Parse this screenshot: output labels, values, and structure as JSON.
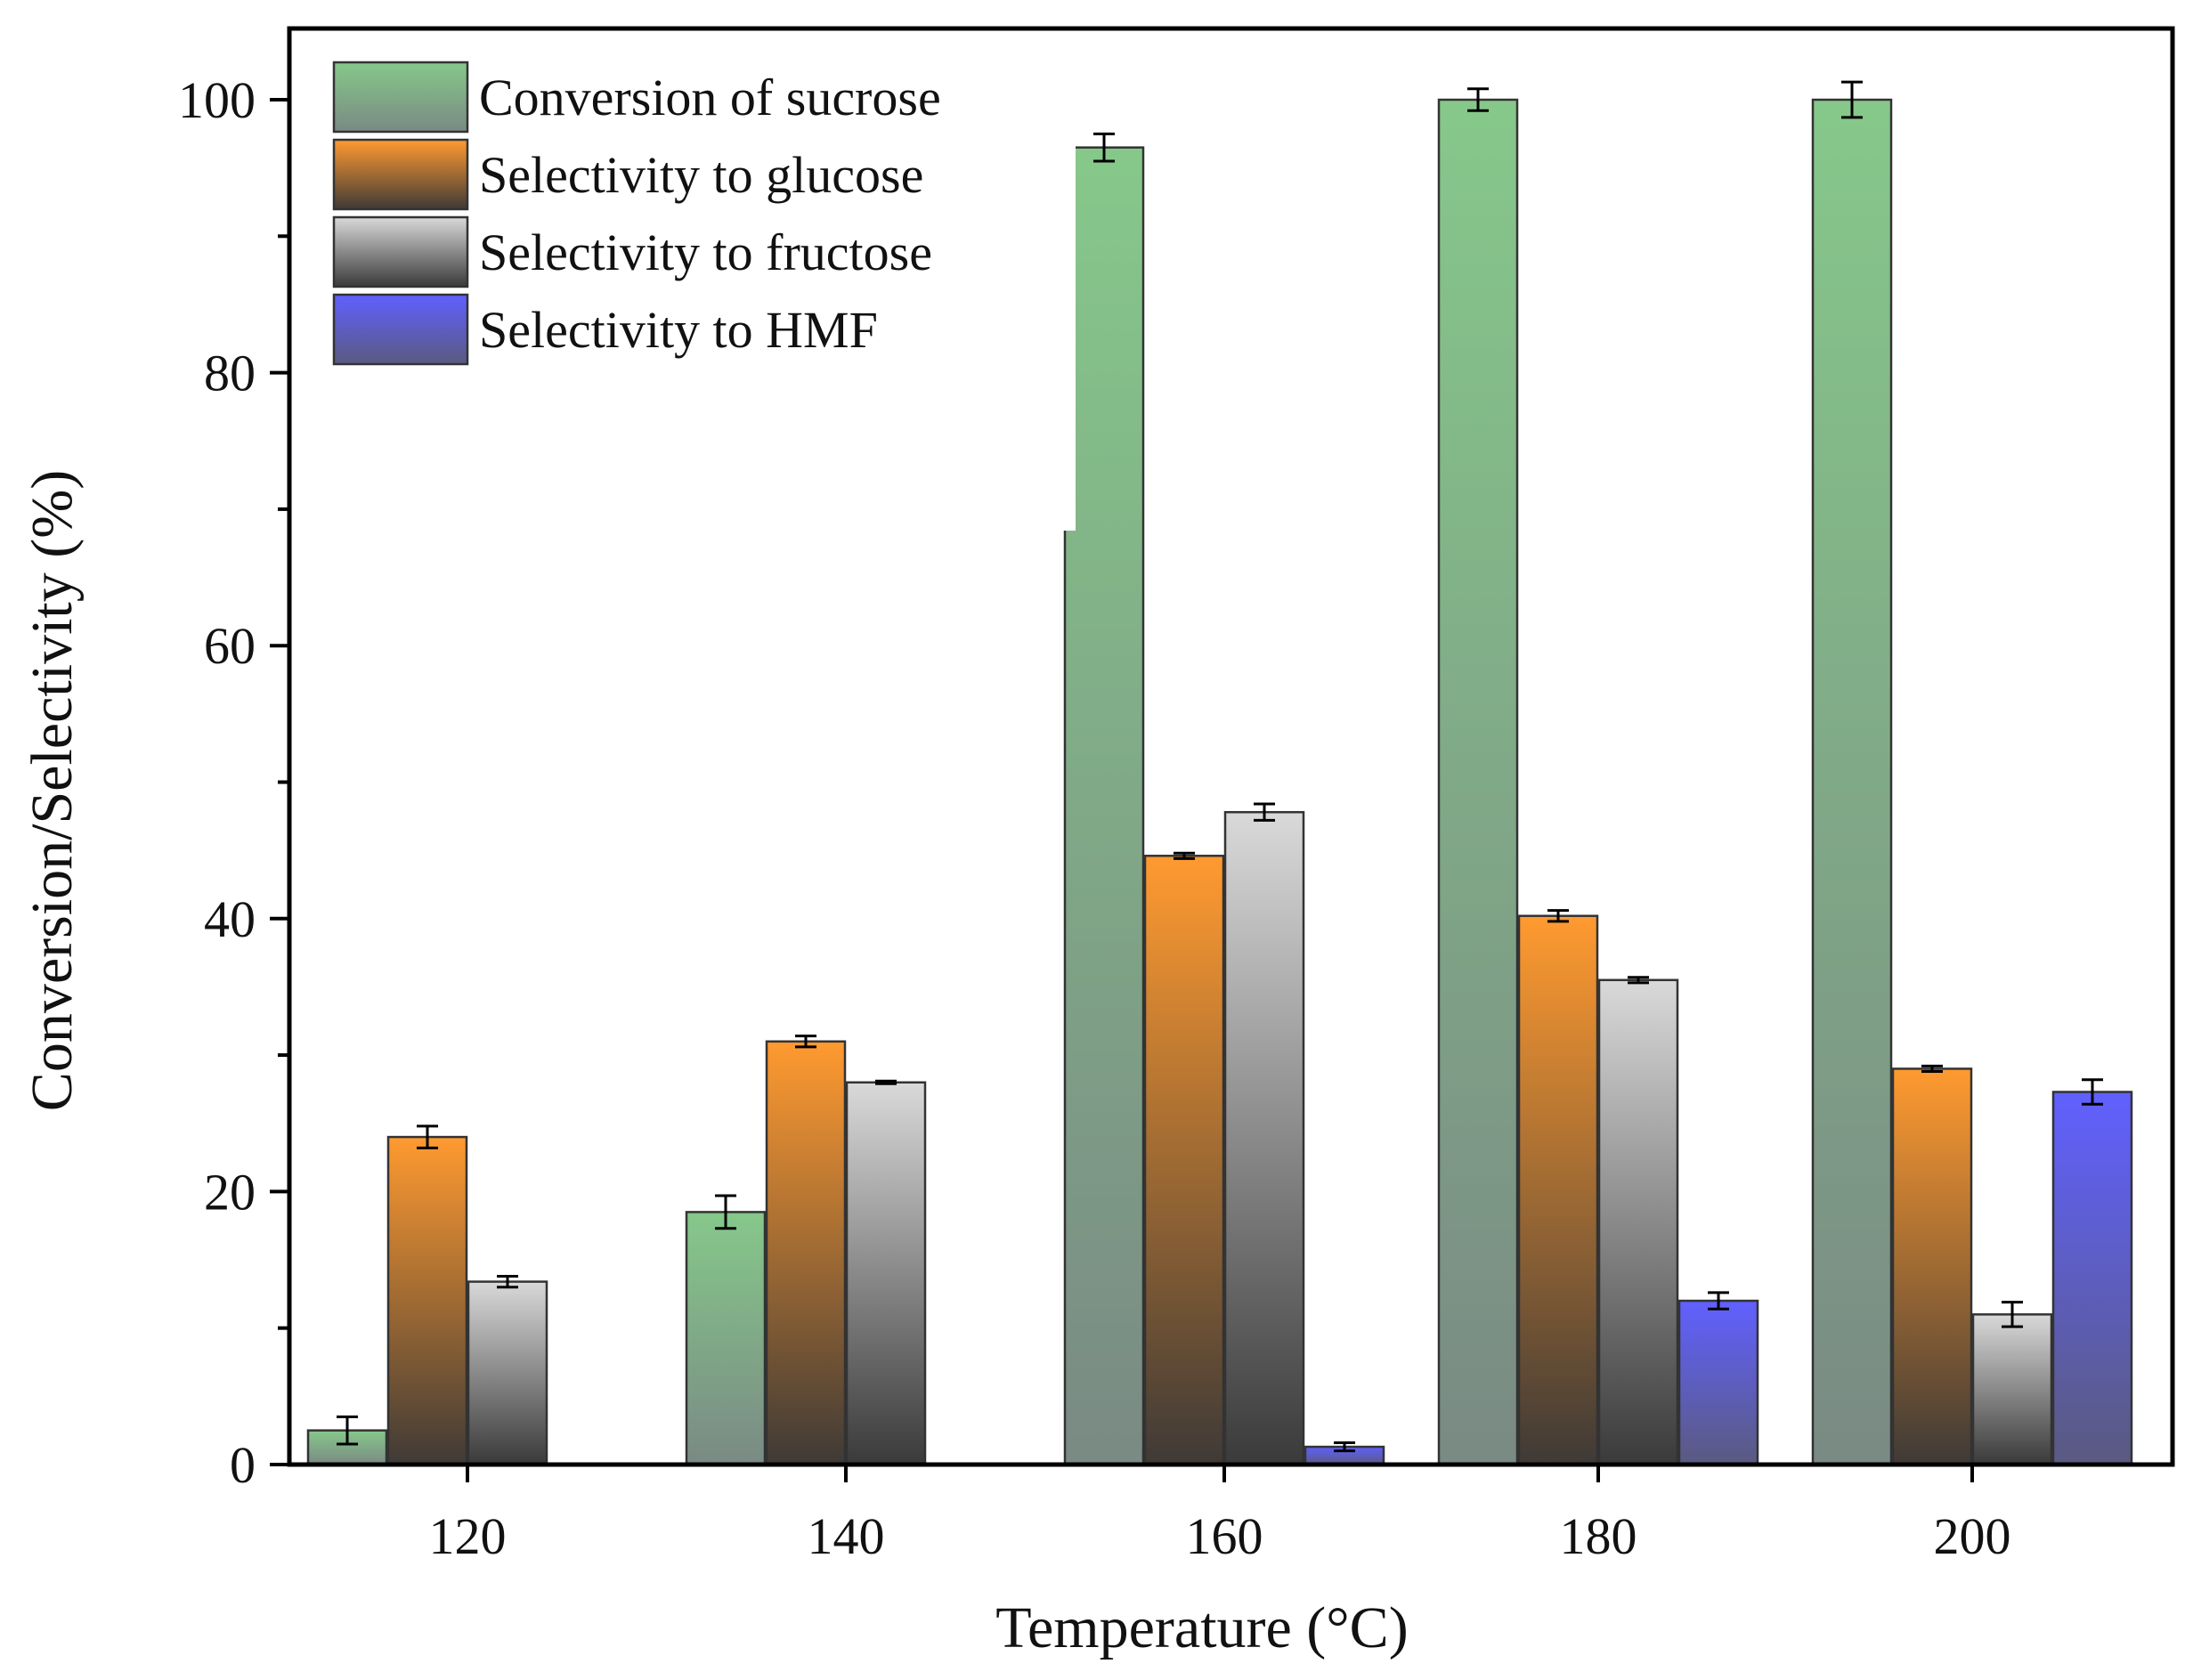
{
  "chart_data": {
    "type": "bar",
    "title": "",
    "xlabel": "Temperature (°C)",
    "ylabel": "Conversion/Selectivity (%)",
    "ylim": [
      0,
      105
    ],
    "y_ticks": [
      "0",
      "20",
      "40",
      "60",
      "80",
      "100"
    ],
    "categories": [
      "120",
      "140",
      "160",
      "180",
      "200"
    ],
    "legend_position": "top-left",
    "series": [
      {
        "name": "Conversion of sucrose",
        "color_top": "#86c88a",
        "color_bottom": "#7a8a84",
        "values": [
          2.5,
          18.5,
          96.5,
          100,
          100
        ],
        "errors": [
          1.0,
          1.2,
          1.0,
          0.8,
          1.3
        ]
      },
      {
        "name": "Selectivity to glucose",
        "color_top": "#ff9a30",
        "color_bottom": "#3f3a36",
        "values": [
          24,
          31,
          44.6,
          40.2,
          29
        ],
        "errors": [
          0.8,
          0.4,
          0.2,
          0.4,
          0.2
        ]
      },
      {
        "name": "Selectivity to fructose",
        "color_top": "#d9d9d9",
        "color_bottom": "#3a3a3a",
        "values": [
          13.4,
          28,
          47.8,
          35.5,
          11
        ],
        "errors": [
          0.4,
          0.1,
          0.6,
          0.2,
          0.9
        ]
      },
      {
        "name": "Selectivity to HMF",
        "color_top": "#6060ff",
        "color_bottom": "#5a5a80",
        "values": [
          null,
          null,
          1.3,
          12,
          27.3
        ],
        "errors": [
          null,
          null,
          0.3,
          0.6,
          0.9
        ]
      }
    ]
  }
}
